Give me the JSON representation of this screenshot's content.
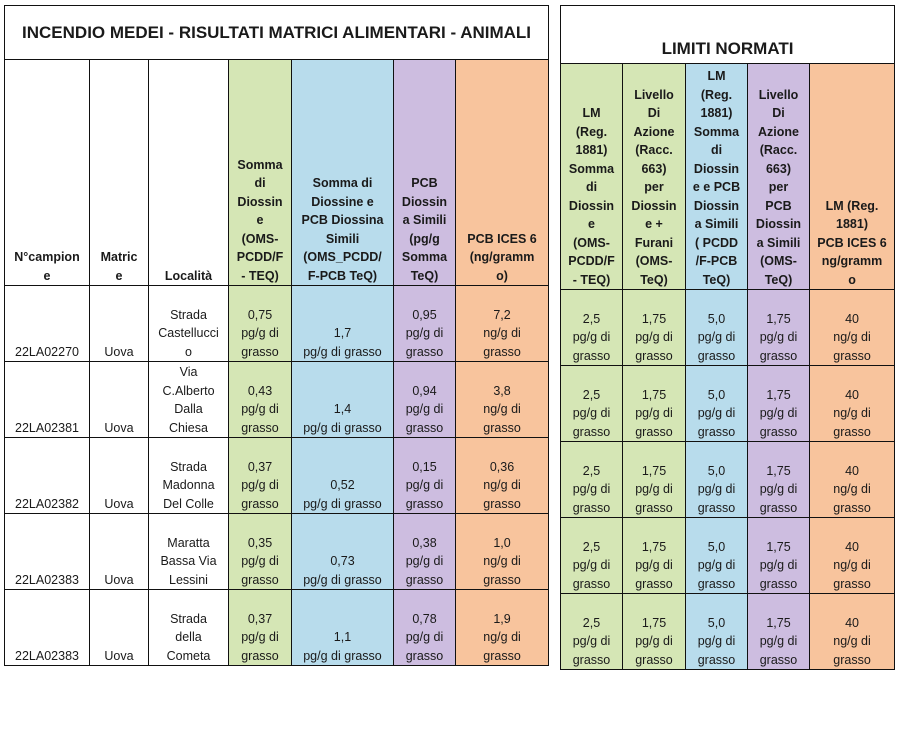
{
  "left_title": "INCENDIO MEDEI  - RISULTATI MATRICI ALIMENTARI - ANIMALI",
  "right_title": "LIMITI NORMATI",
  "left_headers": [
    "N°campion\ne",
    "Matric\ne",
    "Località",
    "Somma\ndi\nDiossin\ne\n(OMS-\nPCDD/F\n-  TEQ)",
    "Somma di\nDiossine e\nPCB Diossina\nSimili\n(OMS_PCDD/\nF-PCB TeQ)",
    "PCB\nDiossin\na Simili\n(pg/g\nSomma\nTeQ)",
    "PCB ICES 6\n(ng/gramm\no)"
  ],
  "right_headers": [
    "LM\n(Reg.\n1881)\nSomma\ndi\nDiossin\ne\n(OMS-\nPCDD/F\n-  TEQ)",
    "Livello\nDi\nAzione\n(Racc.\n663)\nper\nDiossin\ne +\nFurani\n(OMS-\nTeQ)",
    "LM\n(Reg.\n1881)\nSomma\ndi\nDiossin\ne e PCB\nDiossin\na Simili\n( PCDD\n/F-PCB\nTeQ)",
    "Livello\nDi\nAzione\n(Racc.\n663)\nper\nPCB\nDiossin\na Simili\n(OMS-\nTeQ)",
    "LM (Reg.\n1881)\nPCB ICES 6\nng/gramm\no"
  ],
  "rows": [
    {
      "id": "22LA02270",
      "matrix": "Uova",
      "loc": "Strada\nCastellucci\no",
      "d": "0,75\npg/g di\ngrasso",
      "dp": "1,7\npg/g di grasso",
      "pcb": "0,95\npg/g di\ngrasso",
      "ices": "7,2\nng/g di\ngrasso"
    },
    {
      "id": "22LA02381",
      "matrix": "Uova",
      "loc": "Via\nC.Alberto\nDalla\nChiesa",
      "d": "0,43\npg/g di\ngrasso",
      "dp": "1,4\npg/g di grasso",
      "pcb": "0,94\npg/g di\ngrasso",
      "ices": "3,8\nng/g di\ngrasso"
    },
    {
      "id": "22LA02382",
      "matrix": "Uova",
      "loc": "Strada\nMadonna\nDel Colle",
      "d": "0,37\npg/g di\ngrasso",
      "dp": "0,52\npg/g di grasso",
      "pcb": "0,15\npg/g di\ngrasso",
      "ices": "0,36\nng/g di\ngrasso"
    },
    {
      "id": "22LA02383",
      "matrix": "Uova",
      "loc": "Maratta\nBassa Via\nLessini",
      "d": "0,35\npg/g di\ngrasso",
      "dp": "0,73\npg/g di grasso",
      "pcb": "0,38\npg/g di\ngrasso",
      "ices": "1,0\nng/g di\ngrasso"
    },
    {
      "id": "22LA02383",
      "matrix": "Uova",
      "loc": "Strada\ndella\nCometa",
      "d": "0,37\npg/g di\ngrasso",
      "dp": "1,1\npg/g di grasso",
      "pcb": "0,78\npg/g di\ngrasso",
      "ices": "1,9\nng/g di\ngrasso"
    }
  ],
  "limits": [
    {
      "lm_d": "2,5\npg/g di\ngrasso",
      "la_d": "1,75\npg/g di\ngrasso",
      "lm_dp": "5,0\npg/g di\ngrasso",
      "la_pcb": "1,75\npg/g di\ngrasso",
      "lm_ices": "40\nng/g di\ngrasso"
    },
    {
      "lm_d": "2,5\npg/g di\ngrasso",
      "la_d": "1,75\npg/g di\ngrasso",
      "lm_dp": "5,0\npg/g di\ngrasso",
      "la_pcb": "1,75\npg/g di\ngrasso",
      "lm_ices": "40\nng/g di\ngrasso"
    },
    {
      "lm_d": "2,5\npg/g di\ngrasso",
      "la_d": "1,75\npg/g di\ngrasso",
      "lm_dp": "5,0\npg/g di\ngrasso",
      "la_pcb": "1,75\npg/g di\ngrasso",
      "lm_ices": "40\nng/g di\ngrasso"
    },
    {
      "lm_d": "2,5\npg/g di\ngrasso",
      "la_d": "1,75\npg/g di\ngrasso",
      "lm_dp": "5,0\npg/g di\ngrasso",
      "la_pcb": "1,75\npg/g di\ngrasso",
      "lm_ices": "40\nng/g di\ngrasso"
    },
    {
      "lm_d": "2,5\npg/g di\ngrasso",
      "la_d": "1,75\npg/g di\ngrasso",
      "lm_dp": "5,0\npg/g di\ngrasso",
      "la_pcb": "1,75\npg/g di\ngrasso",
      "lm_ices": "40\nng/g di\ngrasso"
    }
  ],
  "colors": {
    "green": "#d5e6b5",
    "blue": "#b8dcec",
    "purple": "#cdbde0",
    "orange": "#f8c49d"
  }
}
